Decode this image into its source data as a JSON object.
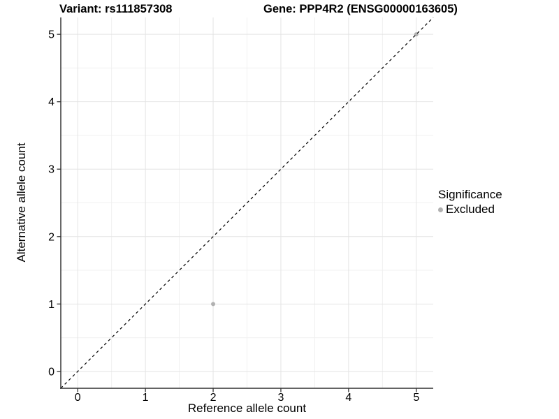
{
  "header": {
    "left_title": "Variant: rs111857308",
    "right_title": "Gene: PPP4R2 (ENSG00000163605)"
  },
  "chart_data": {
    "type": "scatter",
    "title": "Variant: rs111857308 — Gene: PPP4R2 (ENSG00000163605)",
    "xlabel": "Reference allele count",
    "ylabel": "Alternative allele count",
    "xlim": [
      -0.25,
      5.25
    ],
    "ylim": [
      -0.25,
      5.25
    ],
    "x_ticks": [
      0,
      1,
      2,
      3,
      4,
      5
    ],
    "y_ticks": [
      0,
      1,
      2,
      3,
      4,
      5
    ],
    "grid": {
      "visible": true,
      "major_step": 1,
      "minor_step": 0.5
    },
    "identity_line": {
      "style": "dashed",
      "equation": "y = x",
      "color": "#000000"
    },
    "series": [
      {
        "name": "Excluded",
        "color": "#b1b1b1",
        "points": [
          {
            "x": 2,
            "y": 1
          },
          {
            "x": 5,
            "y": 5
          }
        ]
      }
    ],
    "legend": {
      "title": "Significance",
      "position": "right",
      "entries": [
        {
          "label": "Excluded",
          "color": "#b1b1b1",
          "marker": "circle"
        }
      ]
    }
  },
  "colors": {
    "background": "#ffffff",
    "grid_major": "#e4e4e4",
    "grid_minor": "#f0f0f0",
    "axis_line": "#4d4d4d",
    "tick_mark": "#333333",
    "point": "#b1b1b1",
    "identity_line": "#000000",
    "text": "#000000"
  }
}
